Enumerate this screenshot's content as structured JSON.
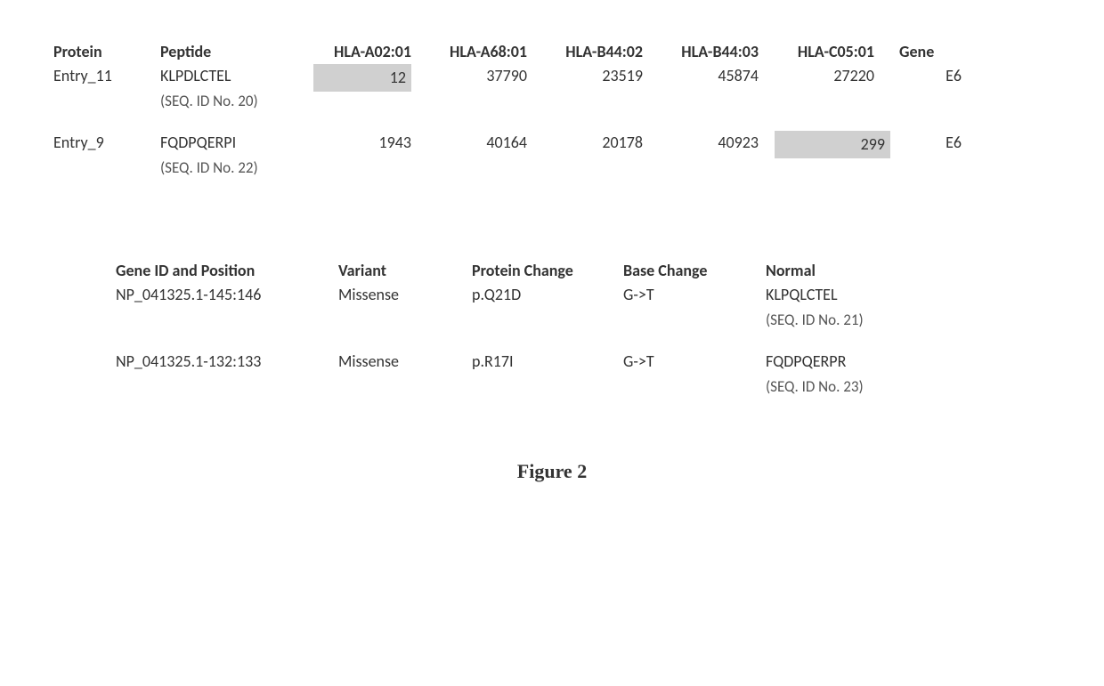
{
  "table1": {
    "headers": {
      "protein": "Protein",
      "peptide": "Peptide",
      "hla1": "HLA-A02:01",
      "hla2": "HLA-A68:01",
      "hla3": "HLA-B44:02",
      "hla4": "HLA-B44:03",
      "hla5": "HLA-C05:01",
      "gene": "Gene"
    },
    "rows": [
      {
        "protein": "Entry_11",
        "peptide": "KLPDLCTEL",
        "seqid": "(SEQ. ID No. 20)",
        "hla1": "12",
        "hla2": "37790",
        "hla3": "23519",
        "hla4": "45874",
        "hla5": "27220",
        "gene": "E6",
        "highlight_col": 1
      },
      {
        "protein": "Entry_9",
        "peptide": "FQDPQERPI",
        "seqid": "(SEQ. ID No. 22)",
        "hla1": "1943",
        "hla2": "40164",
        "hla3": "20178",
        "hla4": "40923",
        "hla5": "299",
        "gene": "E6",
        "highlight_col": 5
      }
    ]
  },
  "table2": {
    "headers": {
      "geneid": "Gene ID and Position",
      "variant": "Variant",
      "protchange": "Protein Change",
      "basechange": "Base Change",
      "normal": "Normal"
    },
    "rows": [
      {
        "geneid": "NP_041325.1-145:146",
        "variant": "Missense",
        "protchange": "p.Q21D",
        "basechange": "G->T",
        "normal": "KLPQLCTEL",
        "seqid": "(SEQ. ID No. 21)"
      },
      {
        "geneid": "NP_041325.1-132:133",
        "variant": "Missense",
        "protchange": "p.R17I",
        "basechange": "G->T",
        "normal": "FQDPQERPR",
        "seqid": "(SEQ. ID No. 23)"
      }
    ]
  },
  "caption": "Figure 2",
  "styling": {
    "highlight_color": "#d0d0d0",
    "background_color": "#ffffff",
    "text_color": "#333333",
    "seqid_color": "#555555",
    "body_fontsize": 18,
    "caption_fontsize": 22,
    "font_family": "Calibri, Arial, sans-serif",
    "caption_font_family": "Times New Roman, serif"
  }
}
